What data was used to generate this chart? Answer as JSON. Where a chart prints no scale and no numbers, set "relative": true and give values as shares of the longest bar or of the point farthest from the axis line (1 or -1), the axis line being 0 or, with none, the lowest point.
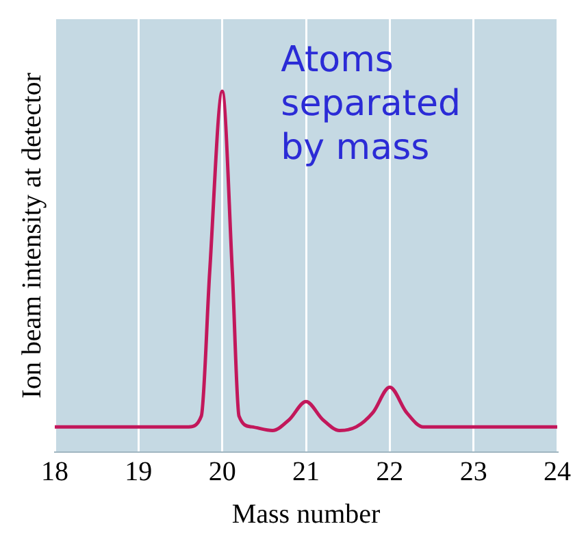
{
  "chart_data": {
    "type": "line",
    "xlabel": "Mass number",
    "ylabel": "Ion beam intensity at detector",
    "annotations": [
      "Atoms\nseparated\nby mass"
    ],
    "x": [
      18,
      19.6,
      19.75,
      19.85,
      20,
      20.12,
      20.2,
      20.35,
      20.6,
      20.8,
      21,
      21.2,
      21.4,
      21.6,
      21.8,
      22,
      22.2,
      22.4,
      24
    ],
    "series": [
      {
        "color": "#c2185b",
        "values": [
          0.07,
          0.07,
          0.1,
          0.5,
          1,
          0.5,
          0.1,
          0.07,
          0.06,
          0.09,
          0.14,
          0.09,
          0.06,
          0.07,
          0.11,
          0.18,
          0.11,
          0.07,
          0.07
        ]
      }
    ],
    "relative": true,
    "xlim": [
      18,
      24
    ],
    "xticks": [
      18,
      19,
      20,
      21,
      22,
      23,
      24
    ],
    "grid": "x",
    "marker": "none",
    "line_style": "solid",
    "legend": false
  }
}
